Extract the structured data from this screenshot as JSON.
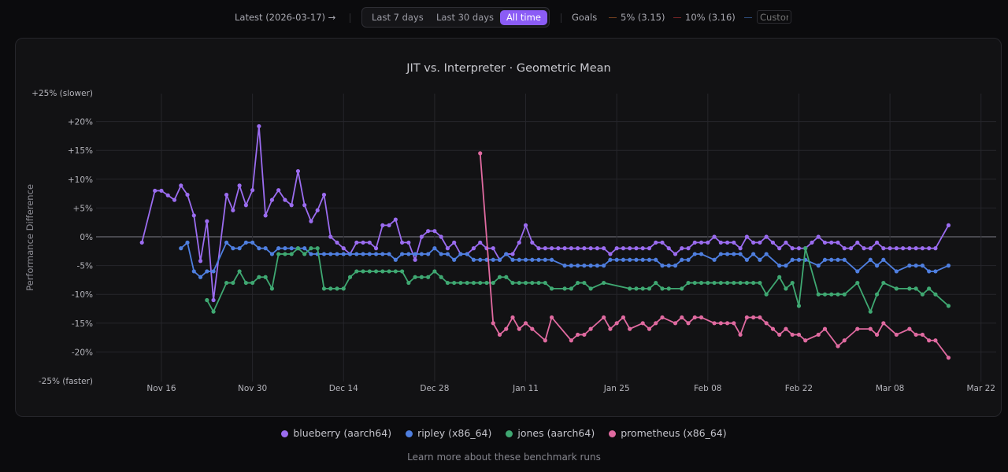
{
  "topbar": {
    "latest_label": "Latest (2026-03-17) →",
    "range_options": [
      "Last 7 days",
      "Last 30 days",
      "All time"
    ],
    "range_selected": "All time",
    "goals_label": "Goals",
    "goals": [
      {
        "label": "5% (3.15)",
        "color": "#7a4320"
      },
      {
        "label": "10% (3.16)",
        "color": "#7a2626"
      },
      {
        "label": "",
        "color": "#2f4f80"
      }
    ],
    "custom_placeholder": "Custom"
  },
  "chart_data": {
    "type": "line",
    "title": "JIT vs. Interpreter · Geometric Mean",
    "ylabel": "Performance Difference",
    "xlabel": "",
    "ylim": [
      -25,
      25
    ],
    "y_ticks": [
      {
        "value": 25,
        "label": "+25% (slower)"
      },
      {
        "value": 20,
        "label": "+20%"
      },
      {
        "value": 15,
        "label": "+15%"
      },
      {
        "value": 10,
        "label": "+10%"
      },
      {
        "value": 5,
        "label": "+5%"
      },
      {
        "value": 0,
        "label": "0%"
      },
      {
        "value": -5,
        "label": "-5%"
      },
      {
        "value": -10,
        "label": "-10%"
      },
      {
        "value": -15,
        "label": "-15%"
      },
      {
        "value": -20,
        "label": "-20%"
      },
      {
        "value": -25,
        "label": "-25% (faster)"
      }
    ],
    "x_ticks": [
      {
        "date": "2025-11-16",
        "label": "Nov 16"
      },
      {
        "date": "2025-11-30",
        "label": "Nov 30"
      },
      {
        "date": "2025-12-14",
        "label": "Dec 14"
      },
      {
        "date": "2025-12-28",
        "label": "Dec 28"
      },
      {
        "date": "2026-01-11",
        "label": "Jan 11"
      },
      {
        "date": "2026-01-25",
        "label": "Jan 25"
      },
      {
        "date": "2026-02-08",
        "label": "Feb 08"
      },
      {
        "date": "2026-02-22",
        "label": "Feb 22"
      },
      {
        "date": "2026-03-08",
        "label": "Mar 08"
      },
      {
        "date": "2026-03-22",
        "label": "Mar 22"
      }
    ],
    "grid": true,
    "legend_position": "bottom",
    "x": [
      "2025-11-13",
      "2025-11-14",
      "2025-11-15",
      "2025-11-16",
      "2025-11-17",
      "2025-11-18",
      "2025-11-19",
      "2025-11-20",
      "2025-11-21",
      "2025-11-22",
      "2025-11-23",
      "2025-11-24",
      "2025-11-25",
      "2025-11-26",
      "2025-11-27",
      "2025-11-28",
      "2025-11-29",
      "2025-11-30",
      "2025-12-01",
      "2025-12-02",
      "2025-12-03",
      "2025-12-04",
      "2025-12-05",
      "2025-12-06",
      "2025-12-07",
      "2025-12-08",
      "2025-12-09",
      "2025-12-10",
      "2025-12-11",
      "2025-12-12",
      "2025-12-13",
      "2025-12-14",
      "2025-12-15",
      "2025-12-16",
      "2025-12-17",
      "2025-12-18",
      "2025-12-19",
      "2025-12-20",
      "2025-12-21",
      "2025-12-22",
      "2025-12-23",
      "2025-12-24",
      "2025-12-25",
      "2025-12-26",
      "2025-12-27",
      "2025-12-28",
      "2025-12-29",
      "2025-12-30",
      "2025-12-31",
      "2026-01-01",
      "2026-01-02",
      "2026-01-03",
      "2026-01-04",
      "2026-01-05",
      "2026-01-06",
      "2026-01-07",
      "2026-01-08",
      "2026-01-09",
      "2026-01-10",
      "2026-01-11",
      "2026-01-12",
      "2026-01-13",
      "2026-01-14",
      "2026-01-15",
      "2026-01-16",
      "2026-01-17",
      "2026-01-18",
      "2026-01-19",
      "2026-01-20",
      "2026-01-21",
      "2026-01-22",
      "2026-01-23",
      "2026-01-24",
      "2026-01-25",
      "2026-01-26",
      "2026-01-27",
      "2026-01-28",
      "2026-01-29",
      "2026-01-30",
      "2026-01-31",
      "2026-02-01",
      "2026-02-02",
      "2026-02-03",
      "2026-02-04",
      "2026-02-05",
      "2026-02-06",
      "2026-02-07",
      "2026-02-08",
      "2026-02-09",
      "2026-02-10",
      "2026-02-11",
      "2026-02-12",
      "2026-02-13",
      "2026-02-14",
      "2026-02-15",
      "2026-02-16",
      "2026-02-17",
      "2026-02-18",
      "2026-02-19",
      "2026-02-20",
      "2026-02-21",
      "2026-02-22",
      "2026-02-23",
      "2026-02-24",
      "2026-02-25",
      "2026-02-26",
      "2026-02-27",
      "2026-02-28",
      "2026-03-01",
      "2026-03-02",
      "2026-03-03",
      "2026-03-04",
      "2026-03-05",
      "2026-03-06",
      "2026-03-07",
      "2026-03-08",
      "2026-03-09",
      "2026-03-10",
      "2026-03-11",
      "2026-03-12",
      "2026-03-13",
      "2026-03-14",
      "2026-03-15",
      "2026-03-16",
      "2026-03-17"
    ],
    "series": [
      {
        "name": "blueberry (aarch64)",
        "color": "#9b6cf0",
        "values": [
          -1,
          null,
          8,
          8,
          7.2,
          6.4,
          8.9,
          7.3,
          3.7,
          -4.2,
          2.7,
          -11,
          null,
          7.3,
          4.6,
          8.9,
          5.5,
          8.1,
          19.2,
          3.7,
          6.4,
          8.1,
          6.4,
          5.5,
          11.4,
          5.5,
          2.7,
          4.6,
          7.3,
          0,
          -1,
          -2,
          -3,
          -1,
          -1,
          -1,
          -2,
          2,
          2,
          3,
          -1,
          -1,
          -4,
          0,
          1,
          1,
          0,
          -2,
          -1,
          -3,
          -3,
          -2,
          -1,
          -2,
          -2,
          -4,
          -3,
          -3,
          -1,
          2,
          -1,
          -2,
          -2,
          -2,
          -2,
          -2,
          -2,
          -2,
          -2,
          -2,
          -2,
          -2,
          -3,
          -2,
          -2,
          -2,
          -2,
          -2,
          -2,
          -1,
          -1,
          -2,
          -3,
          -2,
          -2,
          -1,
          -1,
          -1,
          0,
          -1,
          -1,
          -1,
          -2,
          0,
          -1,
          -1,
          0,
          -1,
          -2,
          -1,
          -2,
          -2,
          -2,
          -1,
          0,
          -1,
          -1,
          -1,
          -2,
          -2,
          -1,
          -2,
          -2,
          -1,
          -2,
          -2,
          -2,
          -2,
          -2,
          -2,
          -2,
          -2,
          -2,
          null,
          2
        ]
      },
      {
        "name": "ripley (x86_64)",
        "color": "#4f7fe0",
        "values": [
          null,
          null,
          null,
          null,
          null,
          null,
          -2,
          -1,
          -6,
          -7,
          -6,
          -6,
          null,
          -1,
          -2,
          -2,
          -1,
          -1,
          -2,
          -2,
          -3,
          -2,
          -2,
          -2,
          -2,
          -2,
          -3,
          -3,
          -3,
          -3,
          -3,
          -3,
          -3,
          -3,
          -3,
          -3,
          -3,
          -3,
          -3,
          -4,
          -3,
          -3,
          -3,
          -3,
          -3,
          -2,
          -3,
          -3,
          -4,
          -3,
          -3,
          -4,
          -4,
          -4,
          -4,
          -4,
          -3,
          -4,
          -4,
          -4,
          -4,
          -4,
          -4,
          -4,
          null,
          -5,
          -5,
          -5,
          -5,
          -5,
          -5,
          -5,
          -4,
          -4,
          -4,
          -4,
          -4,
          -4,
          -4,
          -4,
          -5,
          -5,
          -5,
          -4,
          -4,
          -3,
          -3,
          null,
          -4,
          -3,
          -3,
          -3,
          -3,
          -4,
          -3,
          -4,
          -3,
          null,
          -5,
          -5,
          -4,
          -4,
          -4,
          null,
          -5,
          -4,
          -4,
          -4,
          -4,
          null,
          -6,
          null,
          -4,
          -5,
          -4,
          null,
          -6,
          null,
          -5,
          -5,
          -5,
          -6,
          -6,
          null,
          -5
        ]
      },
      {
        "name": "jones (aarch64)",
        "color": "#3fa872",
        "values": [
          null,
          null,
          null,
          null,
          null,
          null,
          null,
          null,
          null,
          null,
          -11,
          -13,
          null,
          -8,
          -8,
          -6,
          -8,
          -8,
          -7,
          -7,
          -9,
          -3,
          -3,
          -3,
          -2,
          -3,
          -2,
          -2,
          -9,
          -9,
          -9,
          -9,
          -7,
          -6,
          -6,
          -6,
          -6,
          -6,
          -6,
          -6,
          -6,
          -8,
          -7,
          -7,
          -7,
          -6,
          -7,
          -8,
          -8,
          -8,
          -8,
          -8,
          -8,
          -8,
          -8,
          -7,
          -7,
          -8,
          -8,
          -8,
          -8,
          -8,
          -8,
          -9,
          null,
          -9,
          -9,
          -8,
          -8,
          -9,
          null,
          -8,
          null,
          null,
          null,
          -9,
          -9,
          -9,
          -9,
          -8,
          -9,
          -9,
          null,
          -9,
          -8,
          -8,
          -8,
          -8,
          -8,
          -8,
          -8,
          -8,
          -8,
          -8,
          -8,
          -8,
          -10,
          null,
          -7,
          -9,
          -8,
          -12,
          -2,
          null,
          -10,
          -10,
          -10,
          -10,
          -10,
          null,
          -8,
          null,
          -13,
          -10,
          -8,
          null,
          -9,
          null,
          -9,
          -9,
          -10,
          -9,
          -10,
          null,
          -12
        ]
      },
      {
        "name": "prometheus (x86_64)",
        "color": "#e06aa0",
        "values": [
          null,
          null,
          null,
          null,
          null,
          null,
          null,
          null,
          null,
          null,
          null,
          null,
          null,
          null,
          null,
          null,
          null,
          null,
          null,
          null,
          null,
          null,
          null,
          null,
          null,
          null,
          null,
          null,
          null,
          null,
          null,
          null,
          null,
          null,
          null,
          null,
          null,
          null,
          null,
          null,
          null,
          null,
          null,
          null,
          null,
          null,
          null,
          null,
          null,
          null,
          null,
          null,
          14.5,
          null,
          -15,
          -17,
          -16,
          -14,
          -16,
          -15,
          -16,
          null,
          -18,
          -14,
          null,
          null,
          -18,
          -17,
          -17,
          -16,
          null,
          -14,
          -16,
          -15,
          -14,
          -16,
          null,
          -15,
          -16,
          -15,
          -14,
          null,
          -15,
          -14,
          -15,
          -14,
          -14,
          null,
          -15,
          -15,
          -15,
          -15,
          -17,
          -14,
          -14,
          -14,
          -15,
          -16,
          -17,
          -16,
          -17,
          -17,
          -18,
          null,
          -17,
          -16,
          null,
          -19,
          -18,
          null,
          -16,
          null,
          -16,
          -17,
          -15,
          null,
          -17,
          null,
          -16,
          -17,
          -17,
          -18,
          -18,
          null,
          -21
        ]
      }
    ]
  },
  "footer": {
    "learn_more": "Learn more about these benchmark runs"
  }
}
